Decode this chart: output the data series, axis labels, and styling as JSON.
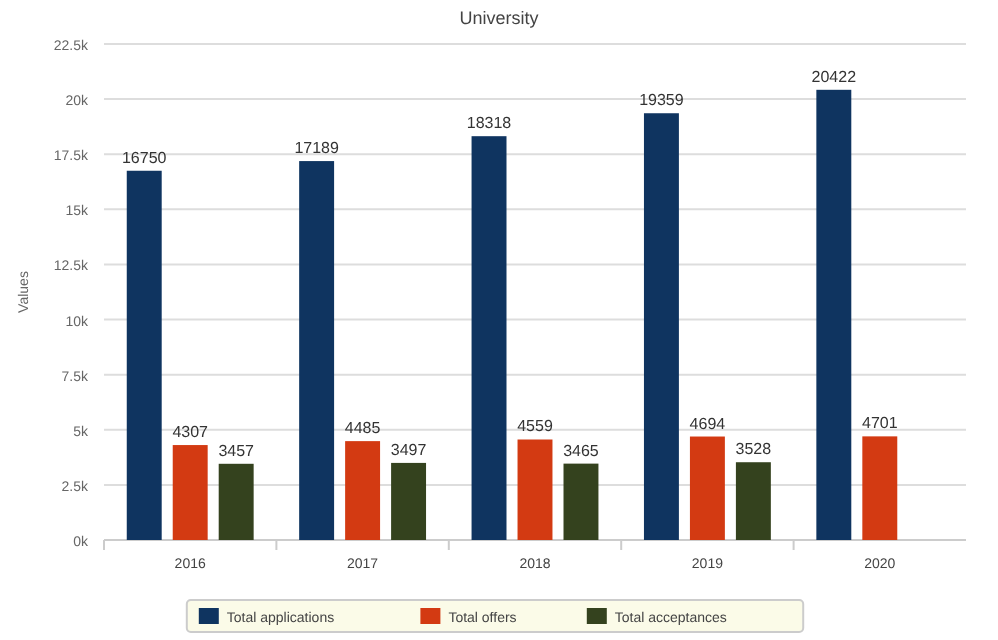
{
  "chart_data": {
    "type": "bar",
    "title": "University",
    "ylabel": "Values",
    "categories": [
      "2016",
      "2017",
      "2018",
      "2019",
      "2020"
    ],
    "series": [
      {
        "name": "Total applications",
        "color": "#0f3460",
        "values": [
          16750,
          17189,
          18318,
          19359,
          20422
        ]
      },
      {
        "name": "Total offers",
        "color": "#d33a12",
        "values": [
          4307,
          4485,
          4559,
          4694,
          4701
        ]
      },
      {
        "name": "Total acceptances",
        "color": "#34421e",
        "values": [
          3457,
          3497,
          3465,
          3528,
          null
        ]
      }
    ],
    "ylim": [
      0,
      22500
    ],
    "yticks": [
      {
        "value": 0,
        "label": "0k"
      },
      {
        "value": 2500,
        "label": "2.5k"
      },
      {
        "value": 5000,
        "label": "5k"
      },
      {
        "value": 7500,
        "label": "7.5k"
      },
      {
        "value": 10000,
        "label": "10k"
      },
      {
        "value": 12500,
        "label": "12.5k"
      },
      {
        "value": 15000,
        "label": "15k"
      },
      {
        "value": 17500,
        "label": "17.5k"
      },
      {
        "value": 20000,
        "label": "20k"
      },
      {
        "value": 22500,
        "label": "22.5k"
      }
    ],
    "grid": "y",
    "legend": "bottom",
    "data_labels": true
  }
}
